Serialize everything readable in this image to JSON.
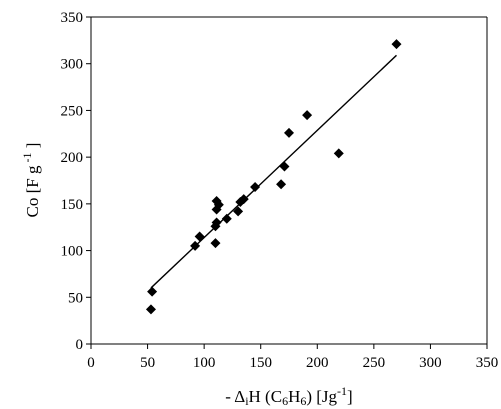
{
  "chart_data": {
    "type": "scatter",
    "title": "",
    "xlabel": "- ΔiH (C6H6) [Jg-1]",
    "ylabel": "Co [F g-1]",
    "xlim": [
      0,
      350
    ],
    "ylim": [
      0,
      350
    ],
    "xticks": [
      "0",
      "50",
      "100",
      "150",
      "200",
      "250",
      "300",
      "350"
    ],
    "yticks": [
      "0",
      "50",
      "100",
      "150",
      "200",
      "250",
      "300",
      "350"
    ],
    "grid": false,
    "legend": "none",
    "points": [
      {
        "x": 53,
        "y": 37
      },
      {
        "x": 54,
        "y": 56
      },
      {
        "x": 92,
        "y": 105
      },
      {
        "x": 96,
        "y": 115
      },
      {
        "x": 110,
        "y": 108
      },
      {
        "x": 110,
        "y": 126
      },
      {
        "x": 111,
        "y": 130
      },
      {
        "x": 111,
        "y": 144
      },
      {
        "x": 111,
        "y": 153
      },
      {
        "x": 113,
        "y": 149
      },
      {
        "x": 120,
        "y": 134
      },
      {
        "x": 130,
        "y": 142
      },
      {
        "x": 132,
        "y": 152
      },
      {
        "x": 135,
        "y": 155
      },
      {
        "x": 145,
        "y": 168
      },
      {
        "x": 168,
        "y": 171
      },
      {
        "x": 171,
        "y": 190
      },
      {
        "x": 175,
        "y": 226
      },
      {
        "x": 191,
        "y": 245
      },
      {
        "x": 219,
        "y": 204
      },
      {
        "x": 270,
        "y": 321
      }
    ],
    "trendline": {
      "x": [
        53,
        270
      ],
      "y": [
        60,
        309
      ]
    },
    "colors": {
      "marker": "#000000",
      "line": "#000000",
      "axis": "#000000"
    }
  }
}
